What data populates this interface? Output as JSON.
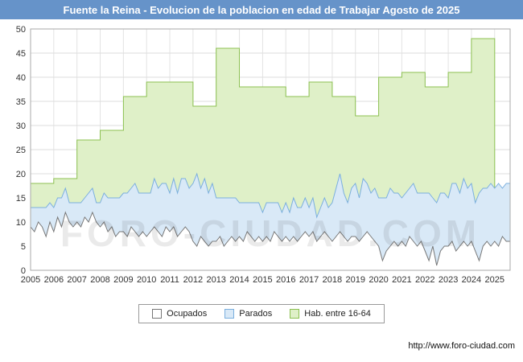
{
  "titlebar": {
    "title": "Fuente la Reina - Evolucion de la poblacion en edad de Trabajar Agosto de 2025",
    "bg": "#6693c9"
  },
  "watermark": "FORO-CIUDAD.COM",
  "footer": {
    "url": "http://www.foro-ciudad.com"
  },
  "legend": {
    "items": [
      {
        "label": "Ocupados",
        "fill": "#ffffff",
        "stroke": "#777777"
      },
      {
        "label": "Parados",
        "fill": "#d9e9f7",
        "stroke": "#7bafde"
      },
      {
        "label": "Hab. entre 16-64",
        "fill": "#dff0c8",
        "stroke": "#8cc152"
      }
    ]
  },
  "chart_data": {
    "type": "area",
    "title": "Fuente la Reina - Evolucion de la poblacion en edad de Trabajar Agosto de 2025",
    "xlabel": "",
    "ylabel": "",
    "ylim": [
      0,
      50
    ],
    "y_ticks": [
      0,
      5,
      10,
      15,
      20,
      25,
      30,
      35,
      40,
      45,
      50
    ],
    "x_range": [
      2005,
      2025.667
    ],
    "x_ticks": [
      2005,
      2006,
      2007,
      2008,
      2009,
      2010,
      2011,
      2012,
      2013,
      2014,
      2015,
      2016,
      2017,
      2018,
      2019,
      2020,
      2021,
      2022,
      2023,
      2024,
      2025
    ],
    "grid": true,
    "legend_position": "bottom",
    "stacking": "Ocupados at bottom, Parados stacked above it; Hab. entre 16-64 drawn behind as yearly steps",
    "series": [
      {
        "name": "Ocupados",
        "kind": "monthly",
        "start_year": 2005,
        "points_per_year": 6,
        "fill": "#ffffff",
        "stroke": "#777777",
        "values": [
          9,
          8,
          10,
          9,
          7,
          10,
          8,
          11,
          9,
          12,
          10,
          9,
          10,
          9,
          11,
          10,
          12,
          10,
          9,
          10,
          8,
          9,
          7,
          8,
          8,
          7,
          9,
          8,
          7,
          8,
          7,
          8,
          9,
          8,
          7,
          9,
          8,
          9,
          7,
          8,
          9,
          8,
          6,
          5,
          7,
          6,
          5,
          6,
          6,
          7,
          5,
          6,
          7,
          6,
          7,
          6,
          8,
          7,
          6,
          7,
          6,
          7,
          6,
          8,
          7,
          6,
          7,
          6,
          7,
          6,
          7,
          8,
          7,
          8,
          6,
          7,
          8,
          7,
          6,
          7,
          8,
          7,
          6,
          7,
          7,
          6,
          7,
          8,
          7,
          6,
          5,
          2,
          4,
          5,
          6,
          5,
          6,
          5,
          7,
          6,
          5,
          6,
          4,
          2,
          5,
          1,
          4,
          5,
          5,
          6,
          4,
          5,
          6,
          5,
          6,
          4,
          2,
          5,
          6,
          5,
          6,
          5,
          7,
          6
        ]
      },
      {
        "name": "Parados",
        "kind": "monthly",
        "start_year": 2005,
        "points_per_year": 6,
        "fill": "#d9e9f7",
        "stroke": "#7bafde",
        "values": [
          4,
          5,
          3,
          4,
          6,
          4,
          5,
          4,
          6,
          5,
          4,
          5,
          4,
          5,
          4,
          6,
          5,
          4,
          5,
          6,
          7,
          6,
          8,
          7,
          8,
          9,
          8,
          10,
          9,
          8,
          9,
          8,
          10,
          9,
          11,
          9,
          8,
          10,
          9,
          11,
          10,
          9,
          12,
          15,
          10,
          13,
          11,
          12,
          9,
          8,
          10,
          9,
          8,
          9,
          7,
          8,
          6,
          7,
          8,
          7,
          6,
          7,
          8,
          6,
          7,
          6,
          7,
          6,
          8,
          7,
          6,
          7,
          6,
          7,
          5,
          6,
          7,
          6,
          8,
          10,
          12,
          9,
          8,
          10,
          11,
          9,
          12,
          10,
          9,
          11,
          10,
          13,
          11,
          12,
          10,
          11,
          9,
          11,
          10,
          12,
          11,
          10,
          12,
          14,
          10,
          13,
          12,
          11,
          10,
          12,
          14,
          11,
          13,
          12,
          12,
          10,
          14,
          12,
          11,
          13,
          11,
          13,
          10,
          12
        ]
      },
      {
        "name": "Hab. entre 16-64",
        "kind": "yearly_step",
        "fill": "#dff0c8",
        "stroke": "#8cc152",
        "years": [
          2005,
          2006,
          2007,
          2008,
          2009,
          2010,
          2011,
          2012,
          2013,
          2014,
          2015,
          2016,
          2017,
          2018,
          2019,
          2020,
          2021,
          2022,
          2023,
          2024,
          2025
        ],
        "values": [
          18,
          19,
          27,
          29,
          36,
          39,
          39,
          34,
          46,
          38,
          38,
          36,
          39,
          36,
          32,
          40,
          41,
          38,
          41,
          48,
          null
        ]
      }
    ]
  }
}
